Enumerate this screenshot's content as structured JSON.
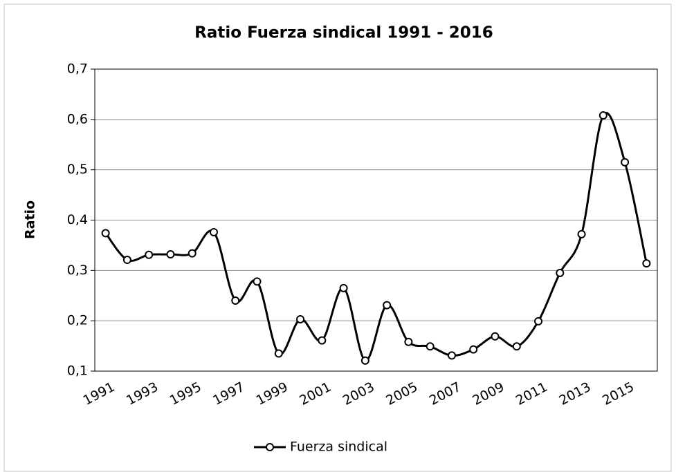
{
  "chart_data": {
    "type": "line",
    "title": "Ratio  Fuerza sindical 1991 - 2016",
    "y_label": "Ratio",
    "categories": [
      "1991",
      null,
      "1993",
      null,
      "1995",
      null,
      "1997",
      null,
      "1999",
      null,
      "2001",
      null,
      "2003",
      null,
      "2005",
      null,
      "2007",
      null,
      "2009",
      null,
      "2011",
      null,
      "2013",
      null,
      "2015",
      null
    ],
    "series": [
      {
        "name": "Fuerza sindical",
        "color": "#000000",
        "values": [
          0.374,
          0.321,
          0.331,
          0.332,
          0.334,
          0.376,
          0.24,
          0.278,
          0.135,
          0.203,
          0.161,
          0.265,
          0.121,
          0.231,
          0.158,
          0.149,
          0.131,
          0.143,
          0.169,
          0.149,
          0.199,
          0.295,
          0.372,
          0.608,
          0.515,
          0.314
        ]
      }
    ],
    "ylim": [
      0.1,
      0.7
    ],
    "yticks": [
      {
        "value": 0.1,
        "label": "0,1"
      },
      {
        "value": 0.2,
        "label": "0,2"
      },
      {
        "value": 0.3,
        "label": "0,3"
      },
      {
        "value": 0.4,
        "label": "0,4"
      },
      {
        "value": 0.5,
        "label": "0,5"
      },
      {
        "value": 0.6,
        "label": "0,6"
      },
      {
        "value": 0.7,
        "label": "0,7"
      }
    ],
    "grid": true,
    "legend": "bottom"
  }
}
